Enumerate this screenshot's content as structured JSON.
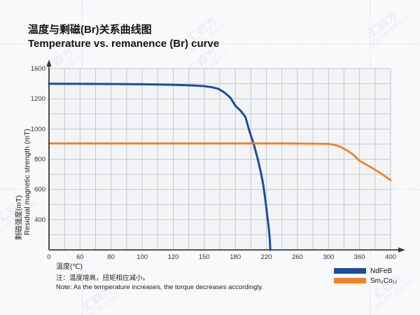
{
  "titles": {
    "zh": "温度与剩磁(Br)关系曲线图",
    "en": "Temperature vs. remanence (Br) curve"
  },
  "chart_data": {
    "type": "line",
    "title": "温度与剩磁(Br)关系曲线图 / Temperature vs. remanence (Br) curve",
    "xlabel": "温度(℃)",
    "ylabel_zh": "剩磁强度(mT)",
    "ylabel_en": "Residual magnetic strength (mT)",
    "x_ticks": [
      0,
      60,
      80,
      100,
      120,
      150,
      180,
      220,
      260,
      300,
      360,
      400
    ],
    "y_ticks": [
      1600,
      1200,
      1000,
      800,
      600,
      400,
      0
    ],
    "axis_style": "tick labels evenly spaced (stylized non-linear scale), one minor gridline between each pair of ticks, arrows on axis ends",
    "grid": true,
    "legend_position": "bottom-right below plot",
    "colors": {
      "grid": "#c4c8cc",
      "axis": "#3b3b3b",
      "plot_bg": "#f3f4f6"
    },
    "series": [
      {
        "name": "NdFeB",
        "color": "#1c4c9e",
        "width": 3,
        "points": [
          [
            0,
            1400
          ],
          [
            40,
            1399
          ],
          [
            80,
            1396
          ],
          [
            100,
            1392
          ],
          [
            120,
            1386
          ],
          [
            140,
            1377
          ],
          [
            150,
            1368
          ],
          [
            158,
            1352
          ],
          [
            164,
            1330
          ],
          [
            170,
            1278
          ],
          [
            175,
            1218
          ],
          [
            180,
            1155
          ],
          [
            187,
            1120
          ],
          [
            193,
            1080
          ],
          [
            198,
            990
          ],
          [
            204,
            895
          ],
          [
            209,
            800
          ],
          [
            213,
            710
          ],
          [
            216,
            630
          ],
          [
            219,
            520
          ],
          [
            221,
            430
          ],
          [
            222.5,
            340
          ],
          [
            223.5,
            250
          ],
          [
            224.5,
            130
          ],
          [
            225,
            0
          ]
        ]
      },
      {
        "name": "Sm₂Co₁₇",
        "color": "#ef8227",
        "width": 2.8,
        "points": [
          [
            0,
            905
          ],
          [
            60,
            905
          ],
          [
            120,
            905
          ],
          [
            180,
            905
          ],
          [
            240,
            905
          ],
          [
            300,
            902
          ],
          [
            312,
            896
          ],
          [
            324,
            881
          ],
          [
            336,
            858
          ],
          [
            348,
            830
          ],
          [
            360,
            790
          ],
          [
            372,
            755
          ],
          [
            384,
            718
          ],
          [
            392,
            690
          ],
          [
            400,
            662
          ]
        ]
      }
    ]
  },
  "legend": {
    "items": [
      {
        "label": "NdFeB",
        "color": "#1c4c9e"
      },
      {
        "label": "Sm₂Co₁₇",
        "color": "#ef8227"
      }
    ]
  },
  "note": {
    "zh": "注：温度增高，扭矩相应减小。",
    "en": "Note: As the temperature increases, the torque decreases accordingly."
  },
  "watermark": {
    "brand": "汇四方",
    "notice": "版权所有 盗图必究",
    "color": "#8b93b5"
  }
}
